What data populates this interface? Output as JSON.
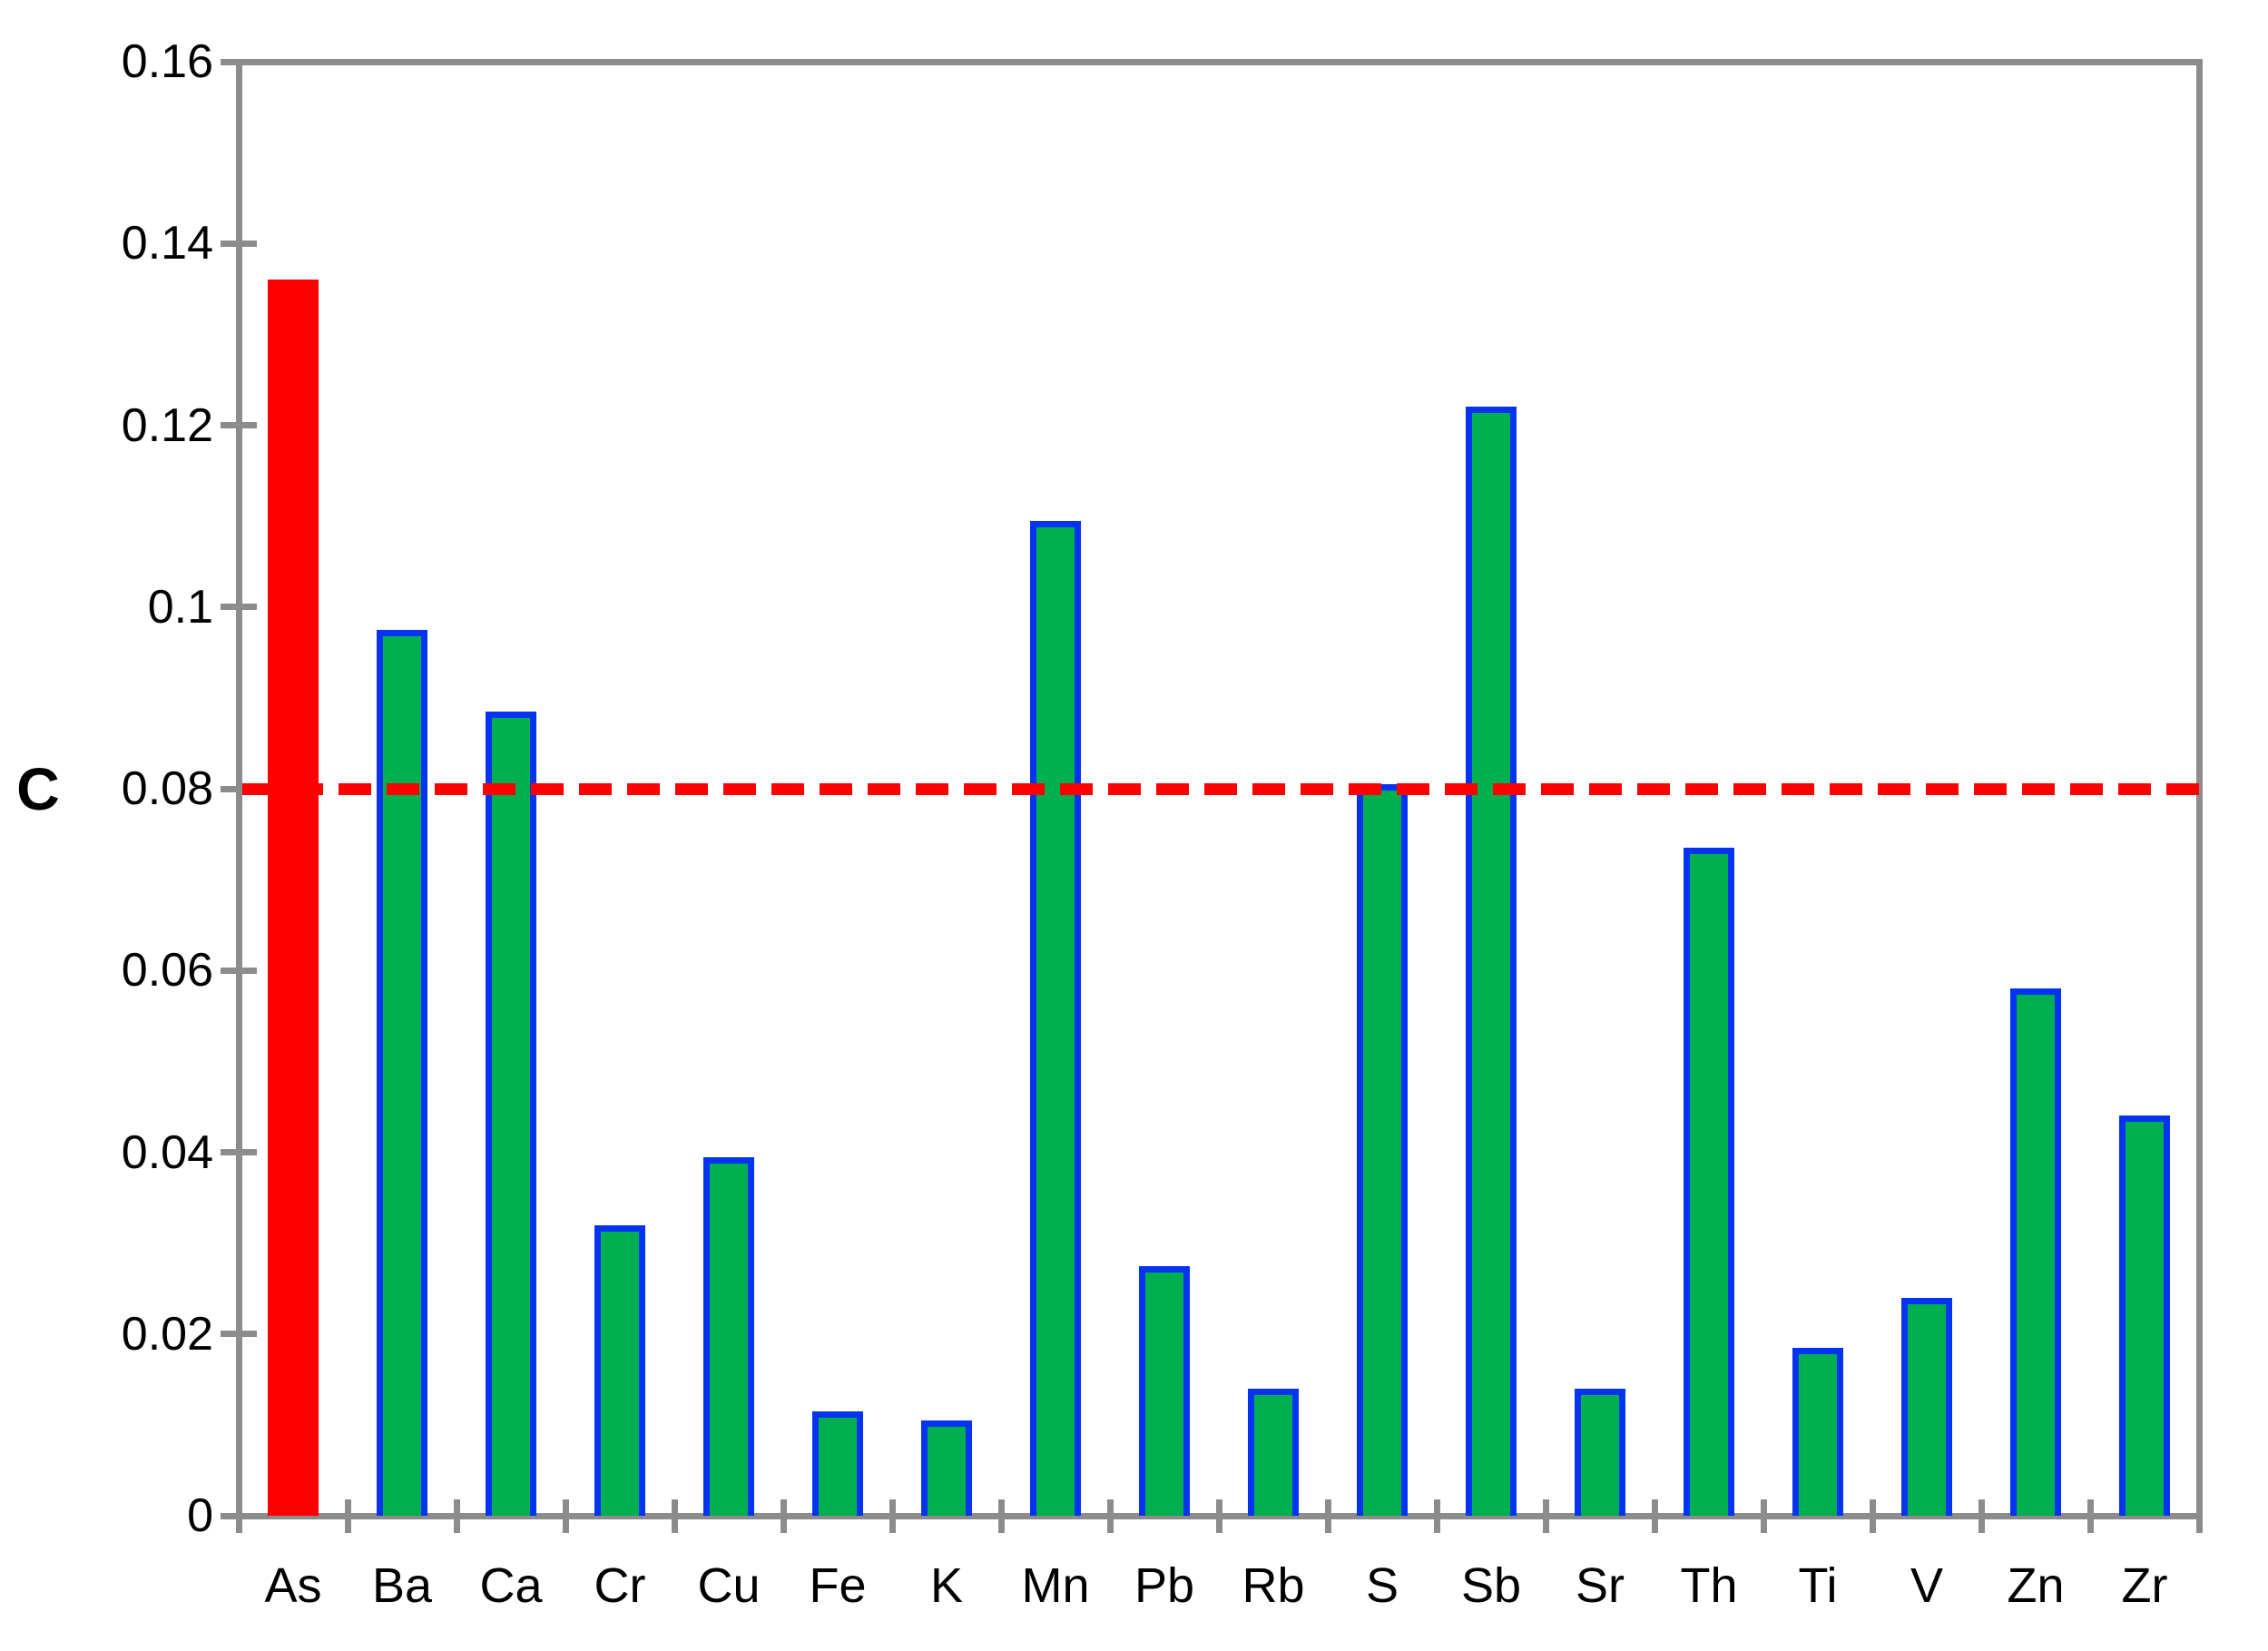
{
  "chart_data": {
    "type": "bar",
    "title": "",
    "xlabel": "",
    "ylabel": "C",
    "categories": [
      "As",
      "Ba",
      "Ca",
      "Cr",
      "Cu",
      "Fe",
      "K",
      "Mn",
      "Pb",
      "Rb",
      "S",
      "Sb",
      "Sr",
      "Th",
      "Ti",
      "V",
      "Zn",
      "Zr"
    ],
    "values": [
      0.136,
      0.0975,
      0.0885,
      0.032,
      0.0395,
      0.0115,
      0.0105,
      0.1095,
      0.0275,
      0.014,
      0.0805,
      0.122,
      0.014,
      0.0735,
      0.0185,
      0.024,
      0.058,
      0.044
    ],
    "ylim": [
      0,
      0.16
    ],
    "y_tick_values": [
      0,
      0.02,
      0.04,
      0.06,
      0.08,
      0.1,
      0.12,
      0.14,
      0.16
    ],
    "y_tick_labels": [
      "0",
      "0.02",
      "0.04",
      "0.06",
      "0.08",
      "0.1",
      "0.12",
      "0.14",
      "0.16"
    ],
    "grid": "off",
    "legend": "none",
    "bar_fill": "#00B050",
    "bar_border": "#0433F2",
    "highlight": {
      "category": "As",
      "fill": "#FF0000"
    },
    "axis_color": "#8C8C8C",
    "reference_line": {
      "value": 0.08,
      "color": "#FF0000",
      "style": "dashed"
    }
  }
}
